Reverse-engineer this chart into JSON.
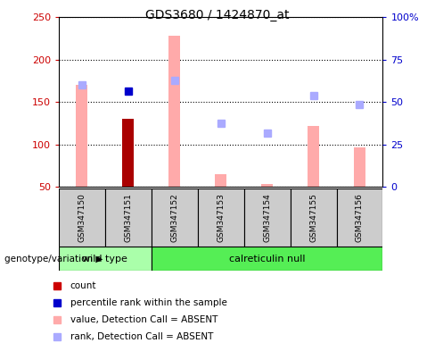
{
  "title": "GDS3680 / 1424870_at",
  "samples": [
    "GSM347150",
    "GSM347151",
    "GSM347152",
    "GSM347153",
    "GSM347154",
    "GSM347155",
    "GSM347156"
  ],
  "bar_values": [
    170,
    130,
    228,
    65,
    53,
    122,
    97
  ],
  "bar_colors": [
    "#ffaaaa",
    "#aa0000",
    "#ffaaaa",
    "#ffaaaa",
    "#ffaaaa",
    "#ffaaaa",
    "#ffaaaa"
  ],
  "rank_dots_x": [
    1
  ],
  "rank_dots_y_left": [
    163
  ],
  "rank_dot_color": "#0000cc",
  "absent_rank_dots_x": [
    0,
    2,
    3,
    4,
    5,
    6
  ],
  "absent_rank_dots_y_left": [
    170,
    176,
    125,
    113,
    158,
    147
  ],
  "absent_rank_color": "#aaaaff",
  "ylim_left": [
    50,
    250
  ],
  "ylim_right": [
    0,
    100
  ],
  "yticks_left": [
    50,
    100,
    150,
    200,
    250
  ],
  "yticks_right": [
    0,
    25,
    50,
    75,
    100
  ],
  "ytick_labels_right": [
    "0",
    "25",
    "50",
    "75",
    "100%"
  ],
  "left_tick_color": "#cc0000",
  "right_tick_color": "#0000cc",
  "wild_type_label": "wild type",
  "calreticulin_label": "calreticulin null",
  "wild_type_bg": "#aaffaa",
  "calreticulin_bg": "#55ee55",
  "legend_items": [
    {
      "label": "count",
      "color": "#cc0000"
    },
    {
      "label": "percentile rank within the sample",
      "color": "#0000cc"
    },
    {
      "label": "value, Detection Call = ABSENT",
      "color": "#ffaaaa"
    },
    {
      "label": "rank, Detection Call = ABSENT",
      "color": "#aaaaff"
    }
  ],
  "bar_bottom": 50,
  "bar_width": 0.25,
  "sample_box_color": "#cccccc",
  "fig_bg": "#ffffff"
}
